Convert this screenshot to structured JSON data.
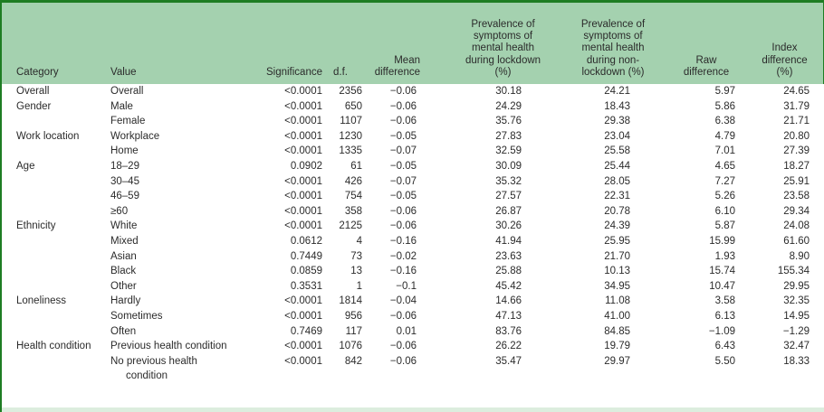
{
  "colors": {
    "header_bg": "#a4d1af",
    "border_dark": "#1e7d23",
    "bottom_strip": "#dcedde",
    "text": "#2b2b2b"
  },
  "table": {
    "columns": [
      {
        "label": "Category"
      },
      {
        "label": "Value"
      },
      {
        "label": "Significance"
      },
      {
        "label": "d.f."
      },
      {
        "label": "Mean difference"
      },
      {
        "label": "Prevalence of symptoms of mental health during lockdown (%)"
      },
      {
        "label": "Prevalence of symptoms of mental health during non-lockdown (%)"
      },
      {
        "label": "Raw difference"
      },
      {
        "label": "Index difference (%)"
      }
    ],
    "rows": [
      [
        "Overall",
        "Overall",
        "<0.0001",
        "2356",
        "−0.06",
        "30.18",
        "24.21",
        "5.97",
        "24.65"
      ],
      [
        "Gender",
        "Male",
        "<0.0001",
        "650",
        "−0.06",
        "24.29",
        "18.43",
        "5.86",
        "31.79"
      ],
      [
        "",
        "Female",
        "<0.0001",
        "1107",
        "−0.06",
        "35.76",
        "29.38",
        "6.38",
        "21.71"
      ],
      [
        "Work location",
        "Workplace",
        "<0.0001",
        "1230",
        "−0.05",
        "27.83",
        "23.04",
        "4.79",
        "20.80"
      ],
      [
        "",
        "Home",
        "<0.0001",
        "1335",
        "−0.07",
        "32.59",
        "25.58",
        "7.01",
        "27.39"
      ],
      [
        "Age",
        "18–29",
        "0.0902",
        "61",
        "−0.05",
        "30.09",
        "25.44",
        "4.65",
        "18.27"
      ],
      [
        "",
        "30–45",
        "<0.0001",
        "426",
        "−0.07",
        "35.32",
        "28.05",
        "7.27",
        "25.91"
      ],
      [
        "",
        "46–59",
        "<0.0001",
        "754",
        "−0.05",
        "27.57",
        "22.31",
        "5.26",
        "23.58"
      ],
      [
        "",
        "≥60",
        "<0.0001",
        "358",
        "−0.06",
        "26.87",
        "20.78",
        "6.10",
        "29.34"
      ],
      [
        "Ethnicity",
        "White",
        "<0.0001",
        "2125",
        "−0.06",
        "30.26",
        "24.39",
        "5.87",
        "24.08"
      ],
      [
        "",
        "Mixed",
        "0.0612",
        "4",
        "−0.16",
        "41.94",
        "25.95",
        "15.99",
        "61.60"
      ],
      [
        "",
        "Asian",
        "0.7449",
        "73",
        "−0.02",
        "23.63",
        "21.70",
        "1.93",
        "8.90"
      ],
      [
        "",
        "Black",
        "0.0859",
        "13",
        "−0.16",
        "25.88",
        "10.13",
        "15.74",
        "155.34"
      ],
      [
        "",
        "Other",
        "0.3531",
        "1",
        "−0.1",
        "45.42",
        "34.95",
        "10.47",
        "29.95"
      ],
      [
        "Loneliness",
        "Hardly",
        "<0.0001",
        "1814",
        "−0.04",
        "14.66",
        "11.08",
        "3.58",
        "32.35"
      ],
      [
        "",
        "Sometimes",
        "<0.0001",
        "956",
        "−0.06",
        "47.13",
        "41.00",
        "6.13",
        "14.95"
      ],
      [
        "",
        "Often",
        "0.7469",
        "117",
        "0.01",
        "83.76",
        "84.85",
        "−1.09",
        "−1.29"
      ],
      [
        "Health condition",
        "Previous health condition",
        "<0.0001",
        "1076",
        "−0.06",
        "26.22",
        "19.79",
        "6.43",
        "32.47"
      ],
      [
        "",
        "No previous health condition",
        "<0.0001",
        "842",
        "−0.06",
        "35.47",
        "29.97",
        "5.50",
        "18.33"
      ]
    ]
  }
}
